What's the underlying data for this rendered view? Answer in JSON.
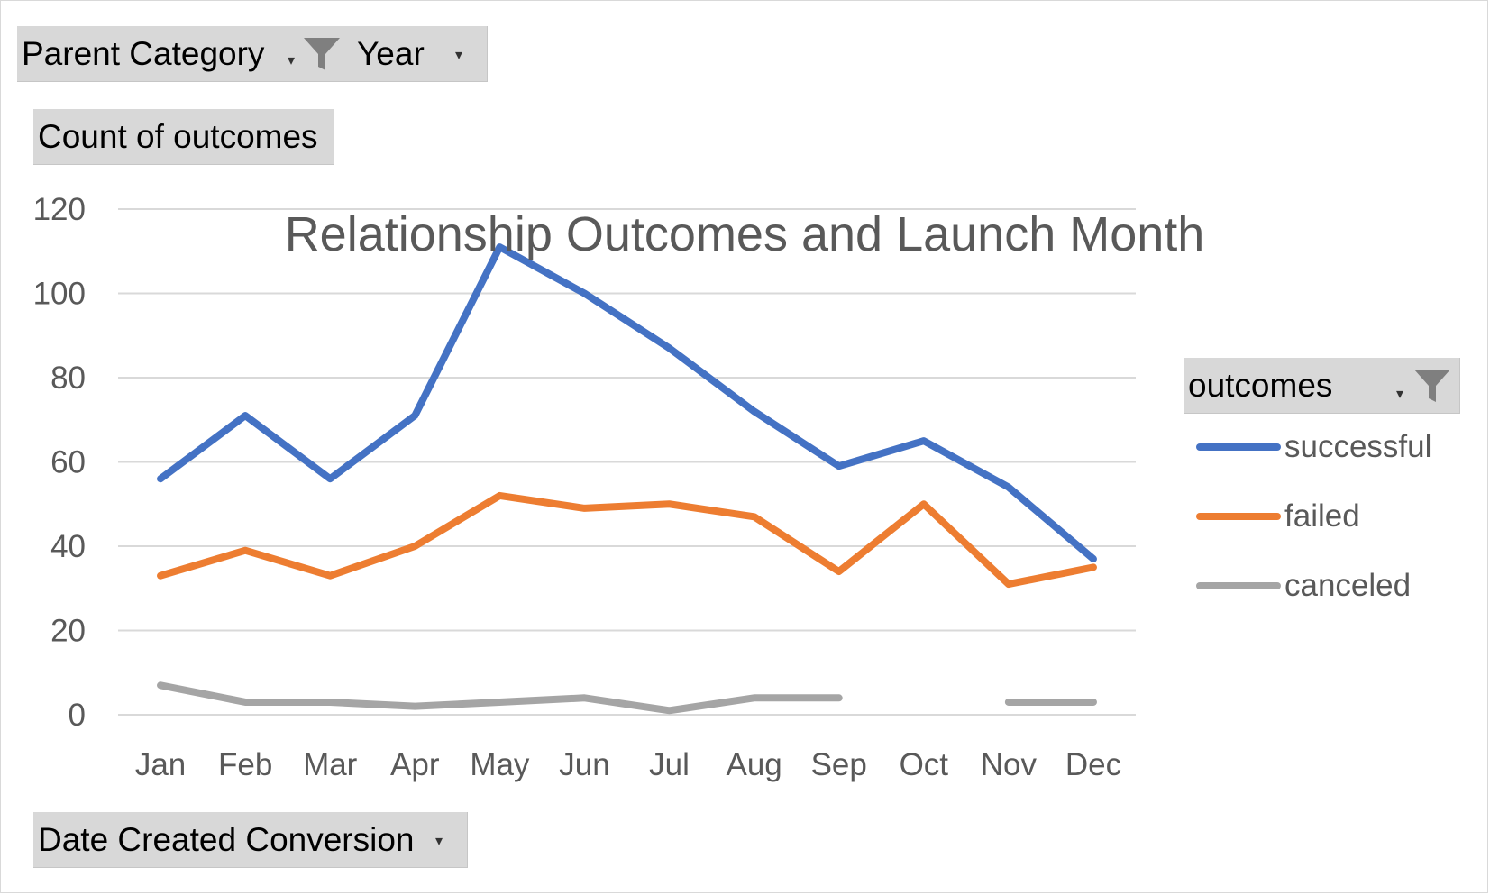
{
  "filters": {
    "parent_category": "Parent Category",
    "year": "Year",
    "values_field": "Count of outcomes",
    "axis_field": "Date Created Conversion",
    "legend_field": "outcomes"
  },
  "icons": {
    "filter": "funnel-icon",
    "dropdown": "dropdown-arrow-icon"
  },
  "chart_data": {
    "type": "line",
    "title": "Relationship Outcomes and Launch Month",
    "xlabel": "",
    "ylabel": "",
    "ylim": [
      0,
      120
    ],
    "yticks": [
      "0",
      "20",
      "40",
      "60",
      "80",
      "100",
      "120"
    ],
    "categories": [
      "Jan",
      "Feb",
      "Mar",
      "Apr",
      "May",
      "Jun",
      "Jul",
      "Aug",
      "Sep",
      "Oct",
      "Nov",
      "Dec"
    ],
    "grid": true,
    "legend_position": "right",
    "series": [
      {
        "name": "successful",
        "color": "#4472c4",
        "values": [
          56,
          71,
          56,
          71,
          111,
          100,
          87,
          72,
          59,
          65,
          54,
          37
        ]
      },
      {
        "name": "failed",
        "color": "#ed7d31",
        "values": [
          33,
          39,
          33,
          40,
          52,
          49,
          50,
          47,
          34,
          50,
          31,
          35
        ]
      },
      {
        "name": "canceled",
        "color": "#a5a5a5",
        "values": [
          7,
          3,
          3,
          2,
          3,
          4,
          1,
          4,
          4,
          null,
          3,
          3
        ]
      }
    ]
  }
}
